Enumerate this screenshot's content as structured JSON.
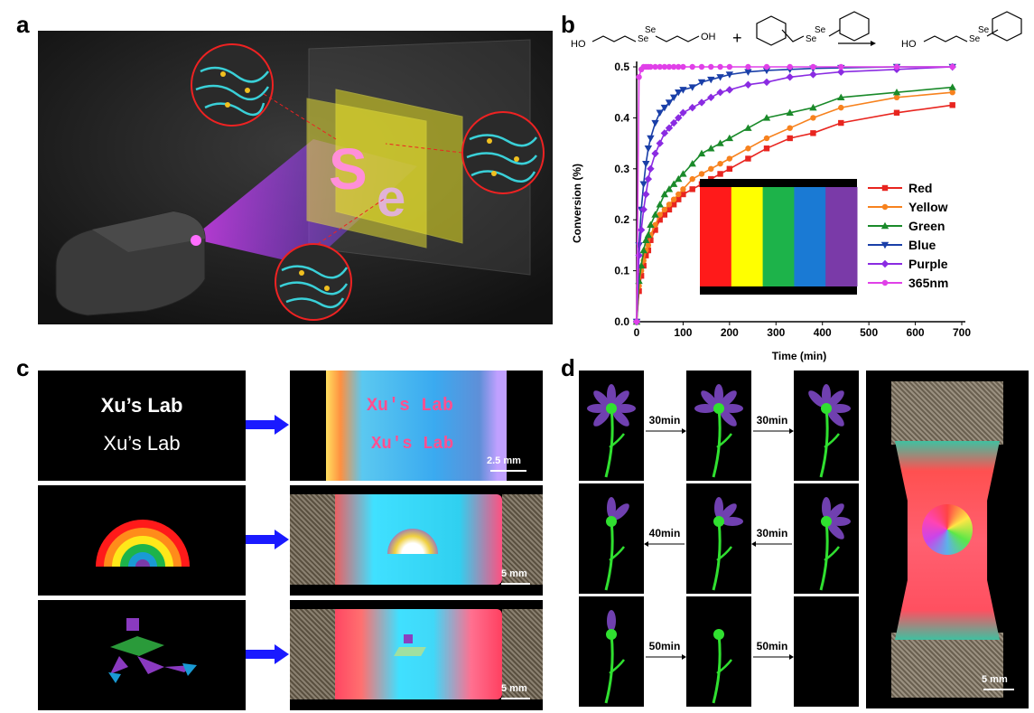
{
  "panels": {
    "a": "a",
    "b": "b",
    "c": "c",
    "d": "d"
  },
  "reaction": {
    "se1": "Se",
    "se2": "Se",
    "ho1": "HO",
    "oh1": "OH",
    "plus": "+",
    "se3": "Se",
    "se4": "Se",
    "ho2": "HO",
    "se5": "Se",
    "se6": "Se"
  },
  "panel_c": {
    "text_bold": "Xu’s Lab",
    "text_plain": "Xu’s Lab",
    "photo_text_1": "Xu's Lab",
    "photo_text_2": "Xu's Lab",
    "scale_1": "2.5 mm",
    "scale_2": "5 mm",
    "scale_3": "5 mm"
  },
  "panel_d": {
    "t1": "30min",
    "t2": "30min",
    "t3": "40min",
    "t4": "30min",
    "t5": "50min",
    "t6": "50min",
    "scale": "5 mm"
  },
  "colors": {
    "red": "#e8251f",
    "yellow": "#f7821e",
    "green": "#1a8a2a",
    "blue": "#1a3fa8",
    "purple": "#8a2be2",
    "uv": "#e040e8"
  },
  "chart_data": {
    "type": "line",
    "xlabel": "Time (min)",
    "ylabel": "Conversion (%)",
    "xlim": [
      0,
      700
    ],
    "ylim": [
      0,
      0.5
    ],
    "xticks": [
      "0",
      "100",
      "200",
      "300",
      "400",
      "500",
      "600",
      "700"
    ],
    "yticks": [
      "0.0",
      "0.1",
      "0.2",
      "0.3",
      "0.4",
      "0.5"
    ],
    "legend_position": "right",
    "series": [
      {
        "name": "Red",
        "color": "#e8251f",
        "marker": "square",
        "x": [
          0,
          5,
          10,
          15,
          20,
          25,
          30,
          40,
          50,
          60,
          70,
          80,
          90,
          100,
          120,
          140,
          160,
          180,
          200,
          240,
          280,
          330,
          380,
          440,
          560,
          680
        ],
        "y": [
          0,
          0.06,
          0.09,
          0.11,
          0.13,
          0.14,
          0.16,
          0.18,
          0.2,
          0.21,
          0.22,
          0.23,
          0.24,
          0.25,
          0.26,
          0.27,
          0.28,
          0.29,
          0.3,
          0.32,
          0.34,
          0.36,
          0.37,
          0.39,
          0.41,
          0.425
        ]
      },
      {
        "name": "Yellow",
        "color": "#f7821e",
        "marker": "circle",
        "x": [
          0,
          5,
          10,
          15,
          20,
          25,
          30,
          40,
          50,
          60,
          70,
          80,
          90,
          100,
          120,
          140,
          160,
          180,
          200,
          240,
          280,
          330,
          380,
          440,
          560,
          680
        ],
        "y": [
          0,
          0.07,
          0.1,
          0.12,
          0.14,
          0.15,
          0.17,
          0.19,
          0.21,
          0.22,
          0.23,
          0.24,
          0.25,
          0.26,
          0.28,
          0.29,
          0.3,
          0.31,
          0.32,
          0.34,
          0.36,
          0.38,
          0.4,
          0.42,
          0.44,
          0.45
        ]
      },
      {
        "name": "Green",
        "color": "#1a8a2a",
        "marker": "triangle",
        "x": [
          0,
          5,
          10,
          15,
          20,
          25,
          30,
          40,
          50,
          60,
          70,
          80,
          90,
          100,
          120,
          140,
          160,
          180,
          200,
          240,
          280,
          330,
          380,
          440,
          560,
          680
        ],
        "y": [
          0,
          0.08,
          0.11,
          0.14,
          0.16,
          0.17,
          0.19,
          0.21,
          0.23,
          0.25,
          0.26,
          0.27,
          0.28,
          0.29,
          0.31,
          0.33,
          0.34,
          0.35,
          0.36,
          0.38,
          0.4,
          0.41,
          0.42,
          0.44,
          0.45,
          0.46
        ]
      },
      {
        "name": "Blue",
        "color": "#1a3fa8",
        "marker": "triangle-down",
        "x": [
          0,
          5,
          10,
          15,
          20,
          25,
          30,
          40,
          50,
          60,
          70,
          80,
          90,
          100,
          120,
          140,
          160,
          180,
          200,
          240,
          280,
          330,
          380,
          440,
          560,
          680
        ],
        "y": [
          0,
          0.15,
          0.22,
          0.27,
          0.31,
          0.34,
          0.36,
          0.39,
          0.41,
          0.42,
          0.43,
          0.44,
          0.45,
          0.455,
          0.46,
          0.47,
          0.475,
          0.48,
          0.485,
          0.49,
          0.493,
          0.495,
          0.497,
          0.498,
          0.5,
          0.5
        ]
      },
      {
        "name": "Purple",
        "color": "#8a2be2",
        "marker": "diamond",
        "x": [
          0,
          5,
          10,
          15,
          20,
          25,
          30,
          40,
          50,
          60,
          70,
          80,
          90,
          100,
          120,
          140,
          160,
          180,
          200,
          240,
          280,
          330,
          380,
          440,
          560,
          680
        ],
        "y": [
          0,
          0.13,
          0.18,
          0.22,
          0.25,
          0.28,
          0.3,
          0.33,
          0.35,
          0.37,
          0.38,
          0.39,
          0.4,
          0.41,
          0.42,
          0.43,
          0.44,
          0.45,
          0.455,
          0.465,
          0.47,
          0.48,
          0.485,
          0.49,
          0.495,
          0.5
        ]
      },
      {
        "name": "365nm",
        "color": "#e040e8",
        "marker": "circle",
        "x": [
          0,
          5,
          10,
          15,
          20,
          25,
          30,
          40,
          50,
          60,
          70,
          80,
          90,
          100,
          120,
          140,
          160,
          180,
          200,
          240,
          280,
          330,
          380,
          440,
          560,
          680
        ],
        "y": [
          0,
          0.48,
          0.495,
          0.5,
          0.5,
          0.5,
          0.5,
          0.5,
          0.5,
          0.5,
          0.5,
          0.5,
          0.5,
          0.5,
          0.5,
          0.5,
          0.5,
          0.5,
          0.5,
          0.5,
          0.5,
          0.5,
          0.5,
          0.5,
          0.5,
          0.5
        ]
      }
    ],
    "inset_colors": [
      "#ff1a1a",
      "#ffff00",
      "#1db34a",
      "#1a7ad4",
      "#7a3aa8"
    ]
  }
}
